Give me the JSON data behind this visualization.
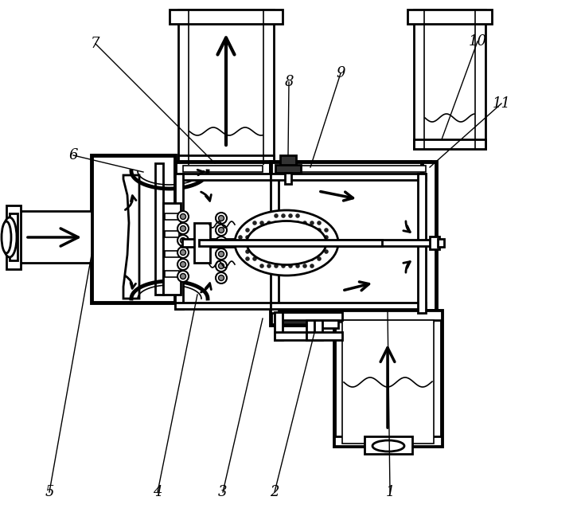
{
  "bg_color": "#ffffff",
  "lc": "#000000",
  "lw": 2.0,
  "lw_thick": 3.5,
  "lw_thin": 1.2
}
